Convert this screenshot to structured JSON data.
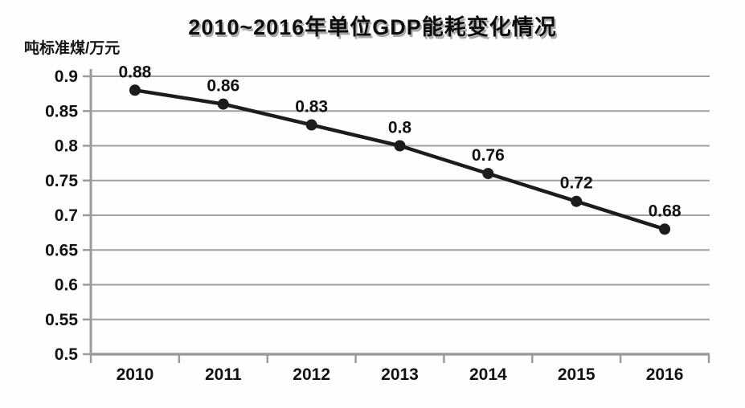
{
  "page": {
    "background": "#fefefe"
  },
  "chart_data": {
    "type": "line",
    "title": "2010~2016年单位GDP能耗变化情况",
    "ylabel": "吨标准煤/万元",
    "xlabel": "",
    "categories": [
      "2010",
      "2011",
      "2012",
      "2013",
      "2014",
      "2015",
      "2016"
    ],
    "values": [
      0.88,
      0.86,
      0.83,
      0.8,
      0.76,
      0.72,
      0.68
    ],
    "point_labels": [
      "0.88",
      "0.86",
      "0.83",
      "0.8",
      "0.76",
      "0.72",
      "0.68"
    ],
    "ylim": [
      0.5,
      0.9
    ],
    "y_tick_step": 0.05,
    "y_ticks": [
      "0.9",
      "0.85",
      "0.8",
      "0.75",
      "0.7",
      "0.65",
      "0.6",
      "0.55",
      "0.5"
    ],
    "grid": true,
    "legend": false,
    "colors": {
      "line": "#1c1c1c",
      "marker": "#1c1c1c",
      "grid": "#a0a0a0",
      "axis": "#9b9b9b",
      "text": "#111111",
      "title_shadow": "#a9a9a9"
    }
  }
}
